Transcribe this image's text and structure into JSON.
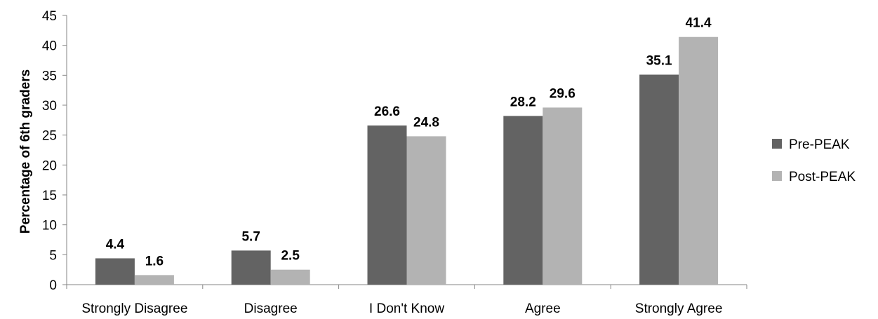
{
  "chart_data": {
    "type": "bar",
    "categories": [
      "Strongly Disagree",
      "Disagree",
      "I Don't Know",
      "Agree",
      "Strongly Agree"
    ],
    "series": [
      {
        "name": "Pre-PEAK",
        "values": [
          4.4,
          5.7,
          26.6,
          28.2,
          35.1
        ],
        "labels": [
          "4.4",
          "5.7",
          "26.6",
          "28.2",
          "35.1"
        ],
        "color": "#636363"
      },
      {
        "name": "Post-PEAK",
        "values": [
          1.6,
          2.5,
          24.8,
          29.6,
          41.4
        ],
        "labels": [
          "1.6",
          "2.5",
          "24.8",
          "29.6",
          "41.4"
        ],
        "color": "#b3b3b3"
      }
    ],
    "ylabel": "Percentage of 6th graders",
    "xlabel": "",
    "ylim": [
      0,
      45
    ],
    "yticks": [
      "0",
      "5",
      "10",
      "15",
      "20",
      "25",
      "30",
      "35",
      "40",
      "45"
    ],
    "grid": false,
    "legend_position": "right"
  }
}
